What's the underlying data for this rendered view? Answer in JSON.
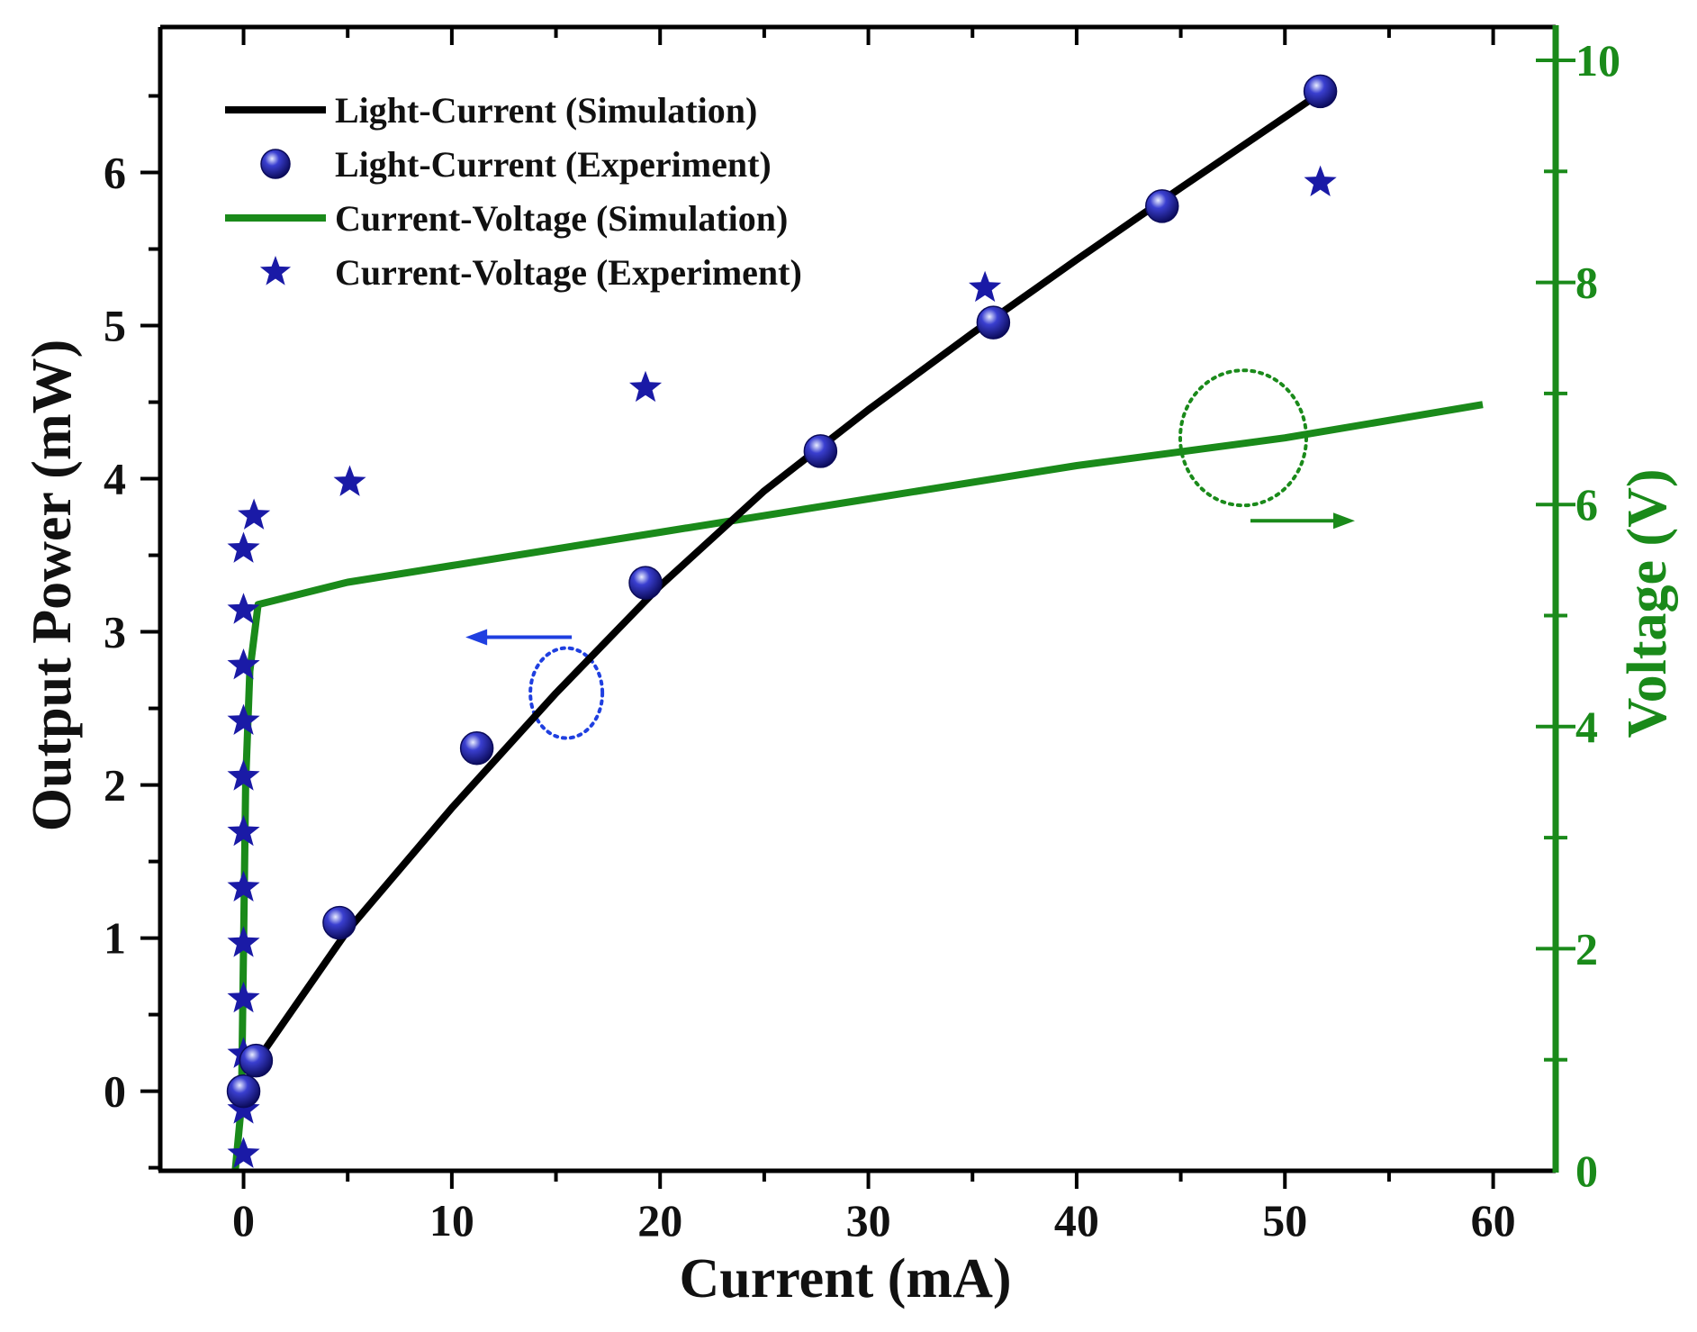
{
  "chart_data": {
    "type": "line",
    "xlabel": "Current (mA)",
    "ylabel_left": "Output Power (mW)",
    "ylabel_right": "Voltage (V)",
    "xlim": [
      -4,
      63
    ],
    "ylim_left": [
      -0.52,
      6.95
    ],
    "ylim_right": [
      0,
      10.3
    ],
    "xticks": [
      0,
      10,
      20,
      30,
      40,
      50,
      60
    ],
    "yticks_left": [
      0,
      1,
      2,
      3,
      4,
      5,
      6
    ],
    "yticks_right": [
      0,
      2,
      4,
      6,
      8,
      10
    ],
    "colors": {
      "lc_sim": "#000000",
      "lc_exp": "#1a1aa6",
      "iv_sim": "#1a8a1a",
      "iv_exp": "#1a1aa6",
      "right_axis": "#1a8a1a",
      "left_arrow": "#1f3fe0"
    },
    "legend": [
      {
        "label": "Light-Current (Simulation)",
        "marker": "line",
        "color": "#000000"
      },
      {
        "label": "Light-Current (Experiment)",
        "marker": "sphere",
        "color": "#1a1aa6"
      },
      {
        "label": "Current-Voltage (Simulation)",
        "marker": "line",
        "color": "#1a8a1a"
      },
      {
        "label": "Current-Voltage (Experiment)",
        "marker": "star",
        "color": "#1a1aa6"
      }
    ],
    "series": [
      {
        "name": "Light-Current (Simulation)",
        "axis": "left",
        "style": "line",
        "x": [
          0.4,
          5,
          10,
          15,
          20,
          25,
          30,
          35,
          40,
          45,
          51.5
        ],
        "y": [
          0.15,
          1.05,
          1.85,
          2.6,
          3.3,
          3.92,
          4.45,
          4.95,
          5.43,
          5.9,
          6.5
        ]
      },
      {
        "name": "Light-Current (Experiment)",
        "axis": "left",
        "style": "sphere",
        "x": [
          0,
          0.6,
          4.6,
          11.2,
          19.3,
          27.7,
          36.0,
          44.1,
          51.7
        ],
        "y": [
          0.0,
          0.2,
          1.1,
          2.24,
          3.32,
          4.18,
          5.02,
          5.78,
          6.53
        ]
      },
      {
        "name": "Current-Voltage (Simulation)",
        "axis": "right",
        "style": "line",
        "x": [
          -0.4,
          -0.1,
          0.0,
          0.1,
          0.3,
          0.7,
          5,
          10,
          20,
          30,
          40,
          50,
          59.5
        ],
        "y": [
          0.0,
          0.6,
          2.0,
          3.5,
          4.5,
          5.1,
          5.3,
          5.45,
          5.75,
          6.05,
          6.35,
          6.6,
          6.9
        ]
      },
      {
        "name": "Current-Voltage (Experiment)",
        "axis": "right",
        "style": "star",
        "x": [
          0,
          0,
          0,
          0,
          0,
          0,
          0,
          0,
          0,
          0,
          0,
          0,
          0.5,
          5.1,
          19.3,
          35.6,
          51.7
        ],
        "y": [
          0.15,
          0.55,
          1.05,
          1.55,
          2.05,
          2.55,
          3.05,
          3.55,
          4.05,
          4.55,
          5.05,
          5.6,
          5.9,
          6.2,
          7.05,
          7.95,
          8.9
        ]
      }
    ],
    "annotations": [
      {
        "type": "dotted-ellipse-arrow",
        "color": "#1f3fe0",
        "points_to": "left axis",
        "cx": 15.5,
        "cy_left": 2.6
      },
      {
        "type": "dotted-ellipse-arrow",
        "color": "#1a8a1a",
        "points_to": "right axis",
        "cx": 48,
        "cy_right": 6.6
      }
    ]
  }
}
